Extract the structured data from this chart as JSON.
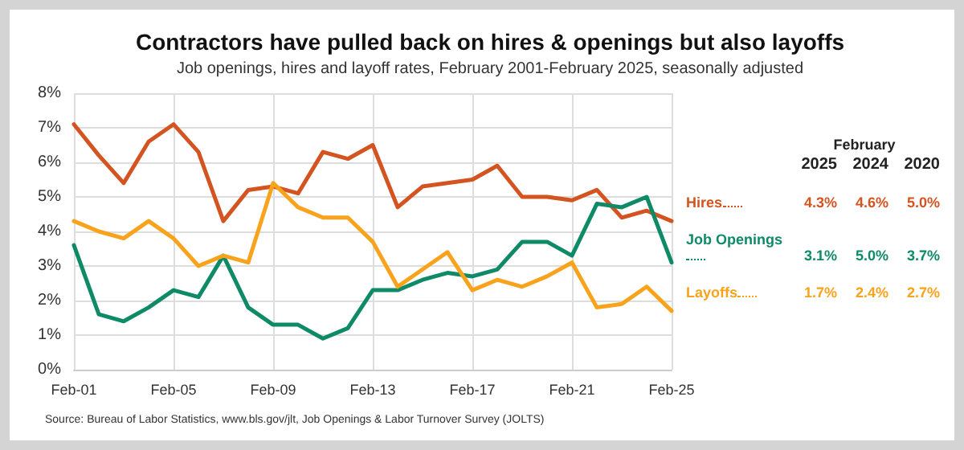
{
  "chart_data": {
    "type": "line",
    "title": "Contractors have pulled back on hires & openings but also layoffs",
    "subtitle": "Job openings, hires and layoff rates, February 2001-February 2025, seasonally adjusted",
    "categories": [
      "Feb-01",
      null,
      null,
      null,
      "Feb-05",
      null,
      null,
      null,
      "Feb-09",
      null,
      null,
      null,
      "Feb-13",
      null,
      null,
      null,
      "Feb-17",
      null,
      null,
      null,
      "Feb-21",
      null,
      null,
      null,
      "Feb-25"
    ],
    "series": [
      {
        "name": "Hires",
        "color": "#d35420",
        "values": [
          7.1,
          6.2,
          5.4,
          6.6,
          7.1,
          6.3,
          4.3,
          5.2,
          5.3,
          5.1,
          6.3,
          6.1,
          6.5,
          4.7,
          5.3,
          5.4,
          5.5,
          5.9,
          5.0,
          5.0,
          4.9,
          5.2,
          4.4,
          4.6,
          4.3
        ]
      },
      {
        "name": "Job Openings",
        "color": "#0e8a67",
        "values": [
          3.6,
          1.6,
          1.4,
          1.8,
          2.3,
          2.1,
          3.3,
          1.8,
          1.3,
          1.3,
          0.9,
          1.2,
          2.3,
          2.3,
          2.6,
          2.8,
          2.7,
          2.9,
          3.7,
          3.7,
          3.3,
          4.8,
          4.7,
          5.0,
          3.1
        ]
      },
      {
        "name": "Layoffs",
        "color": "#f9a21b",
        "values": [
          4.3,
          4.0,
          3.8,
          4.3,
          3.8,
          3.0,
          3.3,
          3.1,
          5.4,
          4.7,
          4.4,
          4.4,
          3.7,
          2.4,
          2.9,
          3.4,
          2.3,
          2.6,
          2.4,
          2.7,
          3.1,
          1.8,
          1.9,
          2.4,
          1.7
        ]
      }
    ],
    "ylim": [
      0,
      8
    ],
    "yticks": [
      {
        "value": 0,
        "label": "0%"
      },
      {
        "value": 1,
        "label": "1%"
      },
      {
        "value": 2,
        "label": "2%"
      },
      {
        "value": 3,
        "label": "3%"
      },
      {
        "value": 4,
        "label": "4%"
      },
      {
        "value": 5,
        "label": "5%"
      },
      {
        "value": 6,
        "label": "6%"
      },
      {
        "value": 7,
        "label": "7%"
      },
      {
        "value": 8,
        "label": "8%"
      }
    ],
    "grid": true,
    "legend": "right",
    "marker": "none",
    "line_style": "solid",
    "annotations": [
      "February",
      "2025",
      "2024",
      "2020",
      "4.3%",
      "4.6%",
      "5.0%",
      "3.1%",
      "5.0%",
      "3.7%",
      "1.7%",
      "2.4%",
      "2.7%",
      "Source: Bureau of Labor Statistics, www.bls.gov/jlt, Job Openings & Labor Turnover Survey (JOLTS)"
    ]
  }
}
